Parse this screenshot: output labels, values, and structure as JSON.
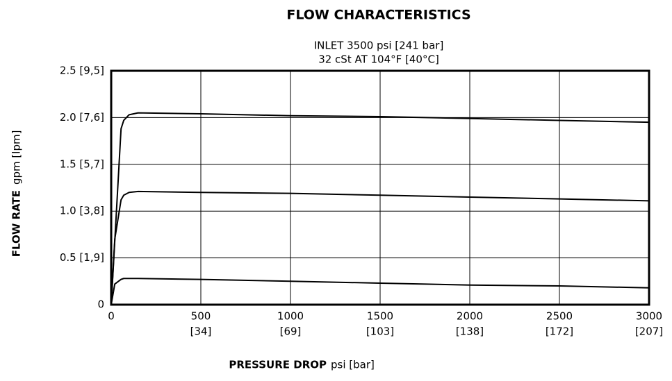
{
  "chart_data": {
    "type": "line",
    "title": "FLOW CHARACTERISTICS",
    "subtitle": [
      "INLET 3500 psi [241 bar]",
      "32 cSt AT 104°F [40°C]"
    ],
    "xlabel": "PRESSURE DROP",
    "xlabel_units": "psi [bar]",
    "ylabel": "FLOW RATE",
    "ylabel_units": "gpm [lpm]",
    "x": [
      0,
      20,
      55,
      70,
      100,
      150,
      500,
      1000,
      1500,
      2000,
      2500,
      3000
    ],
    "series": [
      {
        "color": "#000000",
        "values": [
          0,
          0.68,
          1.88,
          1.97,
          2.03,
          2.05,
          2.04,
          2.02,
          2.01,
          1.99,
          1.97,
          1.95
        ]
      },
      {
        "color": "#000000",
        "values": [
          0,
          0.7,
          1.12,
          1.17,
          1.2,
          1.21,
          1.2,
          1.19,
          1.17,
          1.15,
          1.13,
          1.11
        ]
      },
      {
        "color": "#000000",
        "values": [
          0,
          0.22,
          0.27,
          0.28,
          0.28,
          0.28,
          0.27,
          0.25,
          0.23,
          0.21,
          0.2,
          0.18
        ]
      }
    ],
    "xlim": [
      0,
      3000
    ],
    "ylim": [
      0,
      2.5
    ],
    "xticks": [
      {
        "value": 0,
        "label": "0"
      },
      {
        "value": 500,
        "label": "500",
        "label2": "[34]"
      },
      {
        "value": 1000,
        "label": "1000",
        "label2": "[69]"
      },
      {
        "value": 1500,
        "label": "1500",
        "label2": "[103]"
      },
      {
        "value": 2000,
        "label": "2000",
        "label2": "[138]"
      },
      {
        "value": 2500,
        "label": "2500",
        "label2": "[172]"
      },
      {
        "value": 3000,
        "label": "3000",
        "label2": "[207]"
      }
    ],
    "yticks": [
      {
        "value": 0,
        "label": "0"
      },
      {
        "value": 0.5,
        "label": "0.5 [1,9]"
      },
      {
        "value": 1.0,
        "label": "1.0 [3,8]"
      },
      {
        "value": 1.5,
        "label": "1.5 [5,7]"
      },
      {
        "value": 2.0,
        "label": "2.0 [7,6]"
      },
      {
        "value": 2.5,
        "label": "2.5 [9,5]"
      }
    ],
    "grid": true
  }
}
